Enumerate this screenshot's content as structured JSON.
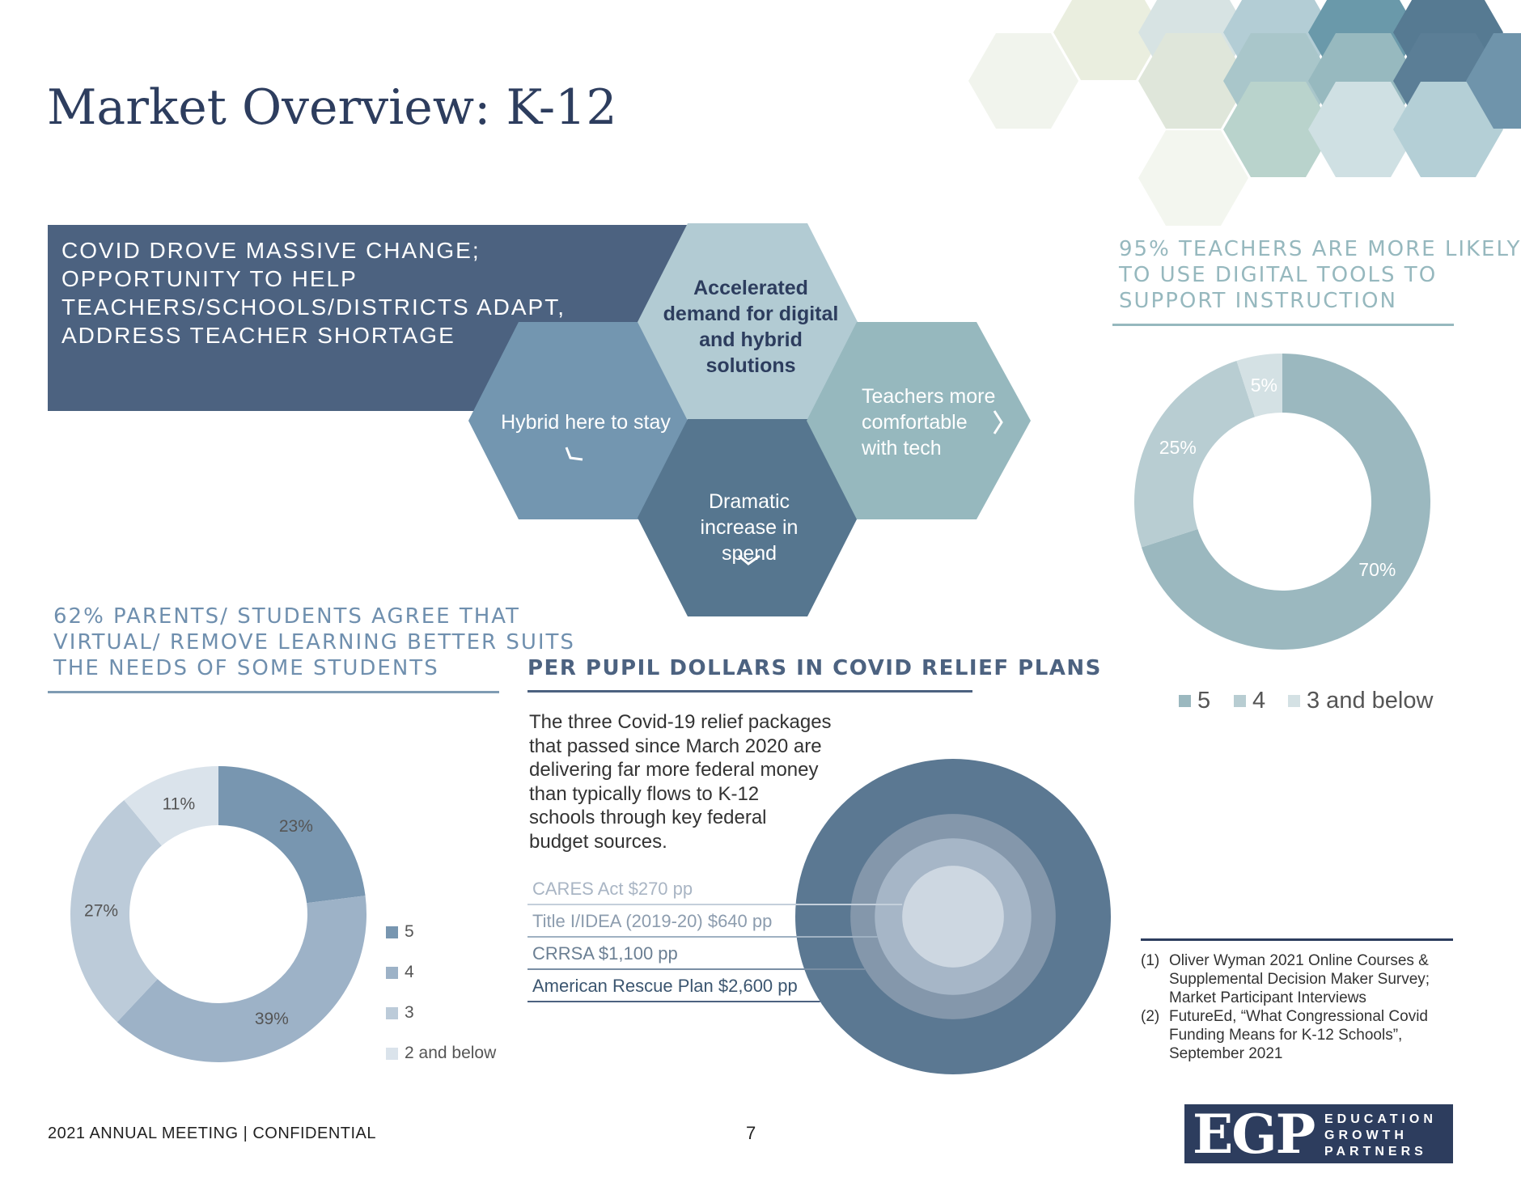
{
  "page": {
    "title": "Market Overview: K-12",
    "footer_left": "2021 ANNUAL MEETING | CONFIDENTIAL",
    "page_number": "7"
  },
  "banner": {
    "lines": [
      "COVID DROVE MASSIVE CHANGE;",
      "OPPORTUNITY TO HELP",
      "TEACHERS/SCHOOLS/DISTRICTS ADAPT,",
      "ADDRESS TEACHER SHORTAGE"
    ]
  },
  "hexagons": {
    "accelerated": [
      "Accelerated",
      "demand for digital",
      "and hybrid",
      "solutions"
    ],
    "hybrid": [
      "Hybrid here to stay"
    ],
    "teachers": [
      "Teachers more",
      "comfortable",
      "with tech"
    ],
    "dramatic": [
      "Dramatic",
      "increase in",
      "spend"
    ]
  },
  "parents_section": {
    "heading": [
      "62% PARENTS/ STUDENTS AGREE THAT",
      "VIRTUAL/ REMOVE LEARNING BETTER SUITS",
      "THE NEEDS OF SOME STUDENTS"
    ]
  },
  "teachers_section": {
    "heading": [
      "95% TEACHERS ARE MORE LIKELY",
      "TO USE DIGITAL TOOLS TO",
      "SUPPORT INSTRUCTION"
    ]
  },
  "relief_section": {
    "heading": "PER PUPIL DOLLARS IN COVID RELIEF PLANS",
    "body": [
      "The three Covid-19 relief packages",
      "that passed since March 2020 are",
      "delivering far more federal money",
      "than typically flows to K-12",
      "schools through key federal",
      "budget sources."
    ]
  },
  "footnotes": [
    {
      "num": "(1)",
      "lines": [
        "Oliver Wyman 2021 Online Courses &",
        "Supplemental Decision Maker Survey;",
        "Market Participant Interviews"
      ]
    },
    {
      "num": "(2)",
      "lines": [
        "FutureEd, “What Congressional Covid",
        "Funding Means for K-12 Schools”,",
        "September 2021"
      ]
    }
  ],
  "logo": {
    "mark": "EGP",
    "lines": [
      "EDUCATION",
      "GROWTH",
      "PARTNERS"
    ]
  },
  "chart_data": [
    {
      "type": "pie",
      "name": "parents",
      "categories": [
        "5",
        "4",
        "3",
        "2 and below"
      ],
      "values": [
        23,
        39,
        27,
        11
      ],
      "labels": [
        "23%",
        "39%",
        "27%",
        "11%"
      ],
      "colors": [
        "#7896b0",
        "#9db2c7",
        "#bccbd9",
        "#dae3eb"
      ],
      "legend_position": "right"
    },
    {
      "type": "pie",
      "name": "teachers",
      "categories": [
        "5",
        "4",
        "3 and below"
      ],
      "values": [
        70,
        25,
        5
      ],
      "labels": [
        "70%",
        "25%",
        "5%"
      ],
      "colors": [
        "#9bb8bf",
        "#b8cdd2",
        "#d4e1e4"
      ],
      "legend_position": "bottom"
    },
    {
      "type": "area",
      "name": "covid_relief",
      "categories": [
        "CARES Act $270 pp",
        "Title I/IDEA (2019-20) $640 pp",
        "CRRSA $1,100 pp",
        "American Rescue Plan $2,600 pp"
      ],
      "values": [
        270,
        640,
        1100,
        2600
      ],
      "colors": [
        "#cdd7e1",
        "#a6b6c7",
        "#8497ab",
        "#5b7892"
      ],
      "label_colors": [
        "#a9b5c4",
        "#8c9cae",
        "#6b7f93",
        "#3c5670"
      ]
    }
  ]
}
